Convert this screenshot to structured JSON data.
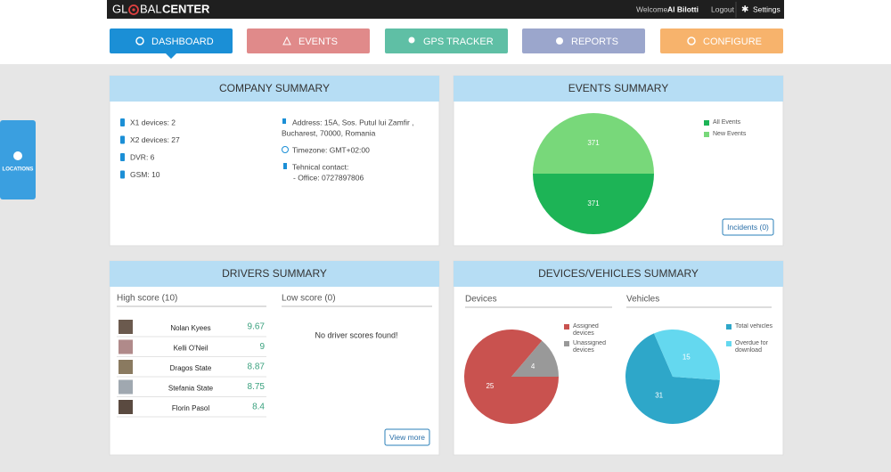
{
  "header": {
    "logo": {
      "left": "GL",
      "middle": "BAL",
      "right": "CENTER"
    },
    "welcome": "Welcome",
    "user": "Al Bilotti",
    "logout": "Logout",
    "settings": "Settings"
  },
  "nav": [
    "DASHBOARD",
    "EVENTS",
    "GPS TRACKER",
    "REPORTS",
    "CONFIGURE"
  ],
  "side_tab": "LOCATIONS",
  "company_summary": {
    "title": "COMPANY SUMMARY",
    "devices": [
      "X1 devices: 2",
      "X2 devices: 27",
      "DVR: 6",
      "GSM: 10"
    ],
    "address": [
      "Address: 15A, Sos. Putul lui Zamfir ,",
      "Bucharest, 70000, Romania"
    ],
    "timezone": "Timezone: GMT+02:00",
    "contact": [
      "Tehnical contact:",
      "- Office: 0727897806"
    ]
  },
  "events_summary": {
    "title": "EVENTS SUMMARY",
    "chart": {
      "type": "pie",
      "categories": [
        "All Events",
        "New Events"
      ],
      "values": [
        371,
        371
      ],
      "colors": [
        "#1db456",
        "#78d87a"
      ]
    },
    "button": "Incidents (0)"
  },
  "drivers_summary": {
    "title": "DRIVERS SUMMARY",
    "high_score": {
      "title": "High score (10)",
      "rows": [
        {
          "name": "Nolan Kyees",
          "score": 9.67
        },
        {
          "name": "Kelli O'Neil",
          "score": 9
        },
        {
          "name": "Dragos State",
          "score": 8.87
        },
        {
          "name": "Stefania State",
          "score": 8.75
        },
        {
          "name": "Florin Pasol",
          "score": 8.4
        }
      ]
    },
    "low_score": {
      "title": "Low score (0)",
      "empty": "No driver scores found!"
    },
    "button": "View more"
  },
  "devices_summary": {
    "title": "DEVICES/VEHICLES SUMMARY",
    "devices": {
      "title": "Devices",
      "chart": {
        "type": "pie",
        "categories": [
          "Assigned devices",
          "Unassigned devices"
        ],
        "values": [
          25,
          4
        ],
        "colors": [
          "#c9524f",
          "#999999"
        ]
      }
    },
    "vehicles": {
      "title": "Vehicles",
      "chart": {
        "type": "pie",
        "categories": [
          "Total vehicles",
          "Overdue for download"
        ],
        "values": [
          31,
          15
        ],
        "colors": [
          "#2ea7c9",
          "#64d8ef"
        ]
      }
    }
  }
}
